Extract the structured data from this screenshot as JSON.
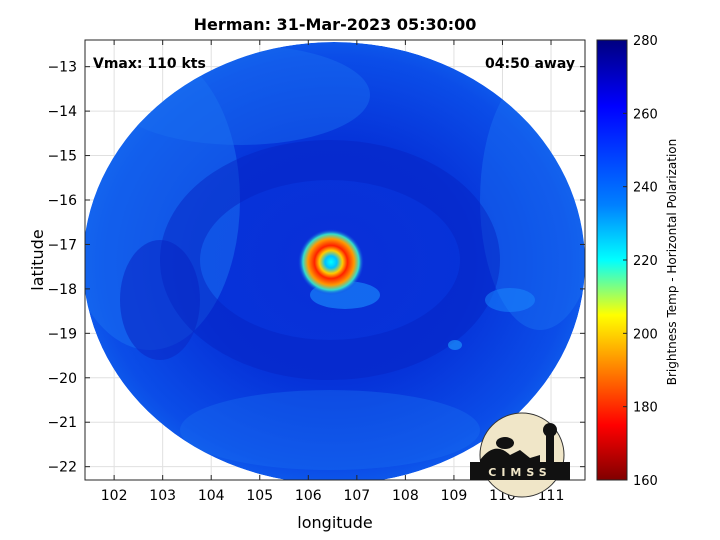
{
  "chart_data": {
    "type": "heatmap",
    "title": "Herman: 31-Mar-2023 05:30:00",
    "xlabel": "longitude",
    "ylabel": "latitude",
    "xlim": [
      101.4,
      111.7
    ],
    "ylim": [
      -22.3,
      -12.4
    ],
    "xticks": [
      102,
      103,
      104,
      105,
      106,
      107,
      108,
      109,
      110,
      111
    ],
    "yticks": [
      -13,
      -14,
      -15,
      -16,
      -17,
      -18,
      -19,
      -20,
      -21,
      -22
    ],
    "grid": true,
    "annotations": {
      "vmax": "Vmax: 110 kts",
      "time_offset": "04:50 away"
    },
    "colorbar": {
      "label": "Brightness Temp - Horizontal Polarization",
      "range": [
        160,
        280
      ],
      "ticks": [
        160,
        180,
        200,
        220,
        240,
        260,
        280
      ],
      "colormap": "jet"
    },
    "storm_center": {
      "lon": 106.5,
      "lat": -17.3
    },
    "logo_text": "CIMSS"
  },
  "colors": {
    "jet_stops": [
      "#800000",
      "#ff0000",
      "#ffff00",
      "#00ffff",
      "#0000ff",
      "#000080"
    ]
  }
}
